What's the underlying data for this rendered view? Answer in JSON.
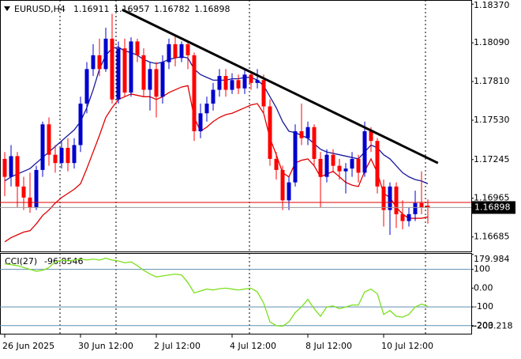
{
  "chart_data": [
    {
      "type": "candlestick",
      "symbol": "EURUSD,H4",
      "categories": [
        "26 Jun 2025",
        null,
        null,
        null,
        null,
        null,
        null,
        null,
        null,
        null,
        null,
        null,
        "30 Jun 12:00",
        null,
        null,
        null,
        null,
        null,
        null,
        null,
        null,
        null,
        null,
        null,
        "2 Jul 12:00",
        null,
        null,
        null,
        null,
        null,
        null,
        null,
        null,
        null,
        null,
        null,
        "4 Jul 12:00",
        null,
        null,
        null,
        null,
        null,
        null,
        null,
        null,
        null,
        null,
        null,
        "8 Jul 12:00",
        null,
        null,
        null,
        null,
        null,
        null,
        null,
        null,
        null,
        null,
        null,
        "10 Jul 12:00",
        null,
        null,
        null,
        null,
        null,
        null,
        null
      ],
      "open": [
        1.1725,
        1.1712,
        1.1727,
        1.1705,
        1.1697,
        1.169,
        1.1717,
        1.175,
        1.1728,
        1.1722,
        1.1733,
        1.1722,
        1.1735,
        1.1765,
        1.179,
        1.18,
        1.179,
        1.1812,
        1.1768,
        1.1805,
        1.1773,
        1.181,
        1.18,
        1.1775,
        1.179,
        1.177,
        1.1795,
        1.1808,
        1.1798,
        1.1808,
        1.18,
        1.1745,
        1.1758,
        1.1765,
        1.1775,
        1.1785,
        1.1775,
        1.1782,
        1.1776,
        1.1786,
        1.178,
        1.1782,
        1.1763,
        1.1725,
        1.1717,
        1.1695,
        1.1708,
        1.1745,
        1.174,
        1.1748,
        1.1725,
        1.1712,
        1.1728,
        1.172,
        1.1716,
        1.1718,
        1.1725,
        1.1715,
        1.1745,
        1.1738,
        1.1705,
        1.1688,
        1.1705,
        1.1685,
        1.168,
        1.1685,
        1.1693,
        1.16911
      ],
      "high": [
        1.173,
        1.1735,
        1.173,
        1.1712,
        1.1715,
        1.172,
        1.1752,
        1.1755,
        1.1735,
        1.1738,
        1.174,
        1.174,
        1.177,
        1.1795,
        1.1808,
        1.1812,
        1.182,
        1.183,
        1.181,
        1.1812,
        1.1813,
        1.1812,
        1.1805,
        1.1795,
        1.1795,
        1.18,
        1.1812,
        1.1815,
        1.181,
        1.181,
        1.1802,
        1.1765,
        1.177,
        1.178,
        1.179,
        1.179,
        1.1787,
        1.1786,
        1.179,
        1.1788,
        1.179,
        1.1786,
        1.1768,
        1.173,
        1.172,
        1.1712,
        1.175,
        1.1765,
        1.1752,
        1.175,
        1.173,
        1.1732,
        1.1732,
        1.1725,
        1.1722,
        1.173,
        1.1728,
        1.1752,
        1.1748,
        1.174,
        1.171,
        1.1708,
        1.1708,
        1.1695,
        1.169,
        1.1702,
        1.1716,
        1.16957
      ],
      "low": [
        1.1698,
        1.1705,
        1.169,
        1.1688,
        1.1686,
        1.1688,
        1.1712,
        1.172,
        1.1715,
        1.1718,
        1.1716,
        1.1718,
        1.173,
        1.1758,
        1.1785,
        1.1785,
        1.1788,
        1.1765,
        1.1765,
        1.177,
        1.177,
        1.1795,
        1.177,
        1.176,
        1.1755,
        1.1765,
        1.179,
        1.1792,
        1.1795,
        1.179,
        1.1738,
        1.174,
        1.1752,
        1.176,
        1.177,
        1.177,
        1.1772,
        1.1772,
        1.1772,
        1.1775,
        1.1776,
        1.1758,
        1.172,
        1.171,
        1.1688,
        1.1688,
        1.1705,
        1.1735,
        1.1735,
        1.172,
        1.169,
        1.1708,
        1.1715,
        1.171,
        1.17,
        1.1712,
        1.1708,
        1.1712,
        1.173,
        1.17,
        1.1676,
        1.167,
        1.1675,
        1.1674,
        1.1676,
        1.168,
        1.1685,
        1.16782
      ],
      "close": [
        1.1712,
        1.1727,
        1.1705,
        1.1697,
        1.169,
        1.1717,
        1.175,
        1.1728,
        1.1722,
        1.1733,
        1.1722,
        1.1735,
        1.1765,
        1.179,
        1.18,
        1.179,
        1.1812,
        1.1768,
        1.1805,
        1.1773,
        1.181,
        1.18,
        1.1775,
        1.179,
        1.177,
        1.1795,
        1.1808,
        1.1798,
        1.1808,
        1.18,
        1.1745,
        1.1758,
        1.1765,
        1.1775,
        1.1785,
        1.1775,
        1.1782,
        1.1776,
        1.1786,
        1.178,
        1.1782,
        1.1763,
        1.1725,
        1.1717,
        1.1695,
        1.1708,
        1.1745,
        1.174,
        1.1748,
        1.1725,
        1.1712,
        1.1728,
        1.172,
        1.1716,
        1.1718,
        1.1725,
        1.1715,
        1.1745,
        1.1738,
        1.1705,
        1.1688,
        1.1705,
        1.1685,
        1.168,
        1.1685,
        1.1693,
        1.169,
        1.16898
      ],
      "up_color": "#0000cd",
      "down_color": "#ff0000",
      "series": [
        {
          "color": "#1a1a9c",
          "values": [
            1.1709,
            1.1712,
            1.1714,
            1.1716,
            1.1718,
            1.1722,
            1.1726,
            1.173,
            1.1734,
            1.1738,
            1.1742,
            1.1746,
            1.1752,
            1.1762,
            1.1775,
            1.179,
            1.18,
            1.1805,
            1.1806,
            1.1803,
            1.1802,
            1.18,
            1.1797,
            1.1795,
            1.1794,
            1.1795,
            1.1797,
            1.1798,
            1.1799,
            1.1798,
            1.179,
            1.1786,
            1.1784,
            1.1782,
            1.1782,
            1.1782,
            1.1783,
            1.1783,
            1.1784,
            1.1784,
            1.1782,
            1.1778,
            1.177,
            1.1762,
            1.1752,
            1.1745,
            1.1744,
            1.1742,
            1.174,
            1.1736,
            1.1732,
            1.173,
            1.1729,
            1.1728,
            1.1727,
            1.1726,
            1.1725,
            1.173,
            1.1735,
            1.1733,
            1.1728,
            1.1725,
            1.172,
            1.1715,
            1.1712,
            1.171,
            1.1709,
            1.1707
          ]
        },
        {
          "color": "#e00000",
          "values": [
            1.1665,
            1.1668,
            1.167,
            1.1672,
            1.1673,
            1.1678,
            1.1684,
            1.1688,
            1.1693,
            1.1697,
            1.17,
            1.1703,
            1.1707,
            1.1718,
            1.173,
            1.1742,
            1.1755,
            1.1762,
            1.1768,
            1.177,
            1.1772,
            1.1771,
            1.177,
            1.177,
            1.1768,
            1.177,
            1.1773,
            1.1775,
            1.1777,
            1.1778,
            1.1755,
            1.1745,
            1.1748,
            1.1752,
            1.1755,
            1.1757,
            1.1758,
            1.176,
            1.1762,
            1.1764,
            1.1765,
            1.1758,
            1.174,
            1.1728,
            1.1715,
            1.1712,
            1.1722,
            1.1724,
            1.1725,
            1.172,
            1.1712,
            1.1714,
            1.1716,
            1.1712,
            1.1708,
            1.1706,
            1.1705,
            1.1716,
            1.1725,
            1.1715,
            1.17,
            1.1697,
            1.169,
            1.1685,
            1.1682,
            1.1682,
            1.1682,
            1.1683
          ]
        }
      ],
      "trendline": {
        "x": [
          18.6,
          68.6
        ],
        "y": [
          1.1833,
          1.1722
        ],
        "color": "#000000"
      },
      "ask_line": {
        "value": 1.16935,
        "color": "#e00000"
      },
      "ylim": [
        1.1658,
        1.184
      ],
      "yticks": [
        {
          "value": 1.1837,
          "label": "1.18370"
        },
        {
          "value": 1.1809,
          "label": "1.18090"
        },
        {
          "value": 1.1781,
          "label": "1.17810"
        },
        {
          "value": 1.1753,
          "label": "1.17530"
        },
        1.17245,
        1.16965,
        1.16685
      ]
    },
    {
      "type": "line",
      "title": "CCI(27)",
      "color": "#7ce01e",
      "values": [
        130,
        125,
        120,
        110,
        100,
        90,
        95,
        110,
        140,
        150,
        145,
        150,
        155,
        150,
        155,
        150,
        160,
        150,
        145,
        135,
        140,
        120,
        95,
        75,
        60,
        65,
        70,
        75,
        70,
        30,
        -25,
        -15,
        -5,
        -10,
        -3,
        0,
        -5,
        -10,
        -5,
        0,
        -20,
        -80,
        -180,
        -200,
        -203.218,
        -180,
        -130,
        -100,
        -60,
        -110,
        -150,
        -100,
        -95,
        -110,
        -100,
        -90,
        -90,
        -20,
        -5,
        -30,
        -140,
        -120,
        -150,
        -155,
        -140,
        -100,
        -85,
        -96.8546
      ],
      "levels": [
        100,
        -100,
        -200
      ],
      "ylim": [
        -243,
        183
      ],
      "yticks": [
        179.984,
        100,
        {
          "value": 0,
          "label": "0.00"
        },
        -100,
        -200,
        -203.218
      ]
    }
  ]
}
